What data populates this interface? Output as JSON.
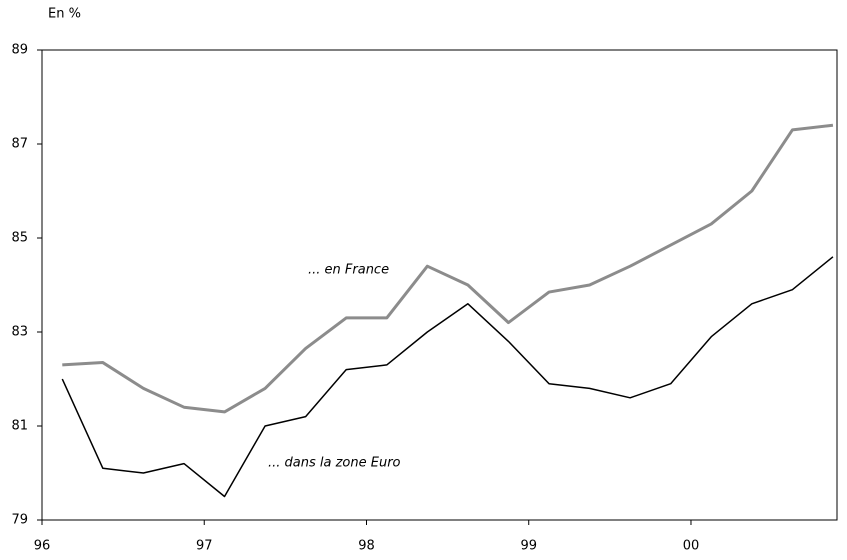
{
  "chart_data": {
    "type": "line",
    "y_label": "En %",
    "x": [
      96.125,
      96.375,
      96.625,
      96.875,
      97.125,
      97.375,
      97.625,
      97.875,
      98.125,
      98.375,
      98.625,
      98.875,
      99.125,
      99.375,
      99.625,
      99.875,
      100.125,
      100.375,
      100.625,
      100.875
    ],
    "series": [
      {
        "name": "... en France",
        "color": "#8c8c8c",
        "values": [
          82.3,
          82.35,
          81.8,
          81.4,
          81.3,
          81.8,
          82.65,
          83.3,
          83.3,
          84.4,
          84.0,
          83.2,
          83.85,
          84.0,
          84.4,
          84.85,
          85.3,
          86.0,
          87.3,
          87.4
        ]
      },
      {
        "name": "... dans la zone Euro",
        "color": "#000000",
        "values": [
          82.0,
          80.1,
          80.0,
          80.2,
          79.5,
          81.0,
          81.2,
          82.2,
          82.3,
          83.0,
          83.6,
          82.8,
          81.9,
          81.8,
          81.6,
          81.9,
          82.9,
          83.6,
          83.9,
          84.6
        ]
      }
    ],
    "xlim": [
      96,
      100.9
    ],
    "xticks": [
      96,
      97,
      98,
      99,
      {
        "value": 100,
        "label": "00"
      }
    ],
    "ylim": [
      79,
      89
    ],
    "yticks": [
      79,
      81,
      83,
      85,
      87,
      89
    ]
  }
}
